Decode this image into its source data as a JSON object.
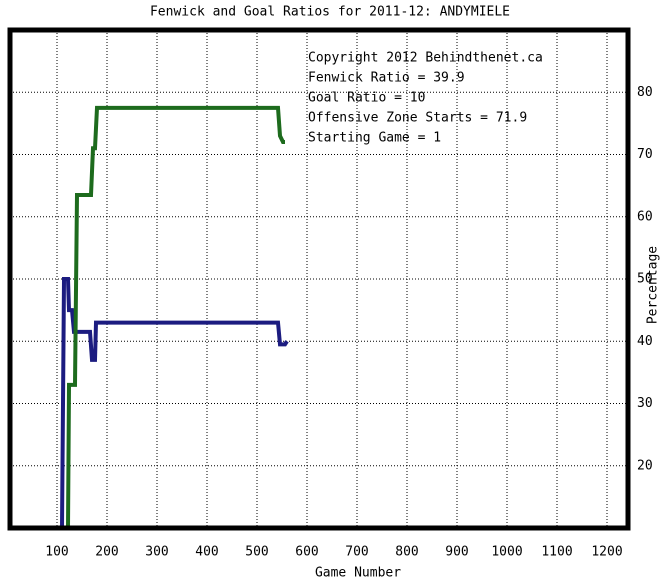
{
  "chart_data": {
    "type": "line",
    "title": "Fenwick and Goal Ratios for 2011-12: ANDYMIELE",
    "x_label": "Game Number",
    "y_label": "Percentage",
    "annotations": [
      {
        "text": "Copyright 2012 Behindthenet.ca",
        "color": "#000000"
      },
      {
        "text": "Fenwick Ratio = 39.9",
        "color": "#1c1c80"
      },
      {
        "text": "Goal Ratio = 10",
        "color": "#8b5a2b"
      },
      {
        "text": "Offensive Zone Starts = 71.9",
        "color": "#1d6b1d"
      },
      {
        "text": "Starting Game = 1",
        "color": "#000000"
      }
    ],
    "xlim": [
      6,
      1242
    ],
    "ylim": [
      10,
      90
    ],
    "xticks": [
      100,
      200,
      300,
      400,
      500,
      600,
      700,
      800,
      900,
      1000,
      1100,
      1200
    ],
    "yticks": [
      20,
      30,
      40,
      50,
      60,
      70,
      80
    ],
    "grid": true,
    "series": [
      {
        "color": "#1c1c80",
        "x": [
          110,
          112,
          114,
          122,
          124,
          130,
          134,
          166,
          170,
          176,
          178,
          542,
          546,
          556,
          560
        ],
        "values": [
          10,
          30,
          50,
          50,
          45,
          45,
          41.5,
          41.5,
          37,
          37,
          43,
          43,
          39.5,
          39.5,
          40
        ]
      },
      {
        "color": "#1d6b1d",
        "x": [
          122,
          124,
          136,
          140,
          168,
          172,
          176,
          180,
          542,
          546,
          552,
          556
        ],
        "values": [
          10,
          33,
          33,
          63.5,
          63.5,
          71,
          71,
          77.5,
          77.5,
          73,
          72,
          72
        ]
      }
    ]
  }
}
